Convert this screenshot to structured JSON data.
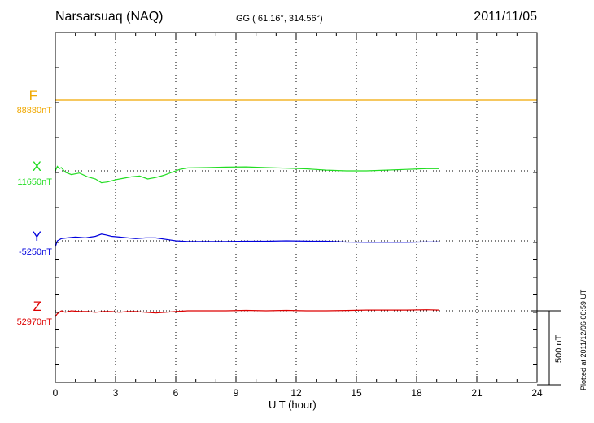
{
  "header": {
    "station": "Narsarsuaq (NAQ)",
    "coords": "GG ( 61.16°, 314.56°)",
    "date": "2011/11/05"
  },
  "footer": {
    "plotted": "Plotted at 2011/12/06 00:59 UT",
    "scale_bar_label": "500 nT"
  },
  "colors": {
    "F": "#f0a800",
    "X": "#22dd22",
    "Y": "#0000dd",
    "Z": "#dd0000"
  },
  "chart_data": {
    "type": "line",
    "title": "Narsarsuaq (NAQ)",
    "xlabel": "U T (hour)",
    "ylabel": "",
    "xlim": [
      0,
      24
    ],
    "x_ticks": [
      "0",
      "3",
      "6",
      "9",
      "12",
      "15",
      "18",
      "21",
      "24"
    ],
    "grid": true,
    "scale_bar_nT": 500,
    "series": [
      {
        "name": "F",
        "baseline_label": "88880nT",
        "x": [
          0,
          24
        ],
        "y_nT": [
          0,
          0
        ]
      },
      {
        "name": "X",
        "baseline_label": "11650nT",
        "x": [
          0,
          0.1,
          0.2,
          0.3,
          0.5,
          0.8,
          1.2,
          1.6,
          2.0,
          2.3,
          2.6,
          3.0,
          3.4,
          3.8,
          4.2,
          4.6,
          5.0,
          5.4,
          5.8,
          6.2,
          6.6,
          7.5,
          8.5,
          9.5,
          10.5,
          11.5,
          12.5,
          13.5,
          14.5,
          15.5,
          16.5,
          17.5,
          18.5,
          19.1
        ],
        "y_nT": [
          0,
          30,
          15,
          22,
          -10,
          -25,
          -15,
          -40,
          -55,
          -80,
          -75,
          -60,
          -50,
          -40,
          -35,
          -55,
          -45,
          -30,
          -10,
          10,
          20,
          22,
          25,
          27,
          22,
          18,
          14,
          5,
          0,
          0,
          5,
          10,
          15,
          15
        ]
      },
      {
        "name": "Y",
        "baseline_label": "-5250nT",
        "x": [
          0,
          0.1,
          0.3,
          0.6,
          1.0,
          1.5,
          2.0,
          2.3,
          2.5,
          2.8,
          3.2,
          3.6,
          4.0,
          4.5,
          5.0,
          5.5,
          6.0,
          6.6,
          7.5,
          8.5,
          9.5,
          10.5,
          11.5,
          12.5,
          13.5,
          14.5,
          15.5,
          16.5,
          17.5,
          18.5,
          19.1
        ],
        "y_nT": [
          -40,
          0,
          15,
          20,
          25,
          20,
          30,
          45,
          40,
          30,
          25,
          20,
          15,
          20,
          20,
          10,
          0,
          -5,
          -5,
          -5,
          -3,
          -3,
          0,
          -2,
          -3,
          -8,
          -10,
          -10,
          -10,
          -7,
          -7
        ]
      },
      {
        "name": "Z",
        "baseline_label": "52970nT",
        "x": [
          0,
          0.1,
          0.3,
          0.5,
          0.8,
          1.2,
          1.6,
          2.0,
          2.4,
          2.8,
          3.2,
          3.6,
          4.0,
          4.5,
          5.0,
          5.5,
          6.0,
          6.6,
          7.5,
          8.5,
          9.5,
          10.5,
          11.5,
          12.5,
          13.5,
          14.5,
          15.5,
          16.5,
          17.5,
          18.5,
          19.1
        ],
        "y_nT": [
          -40,
          -20,
          0,
          -10,
          0,
          -5,
          -5,
          -10,
          -5,
          -5,
          -10,
          -5,
          -5,
          -10,
          -15,
          -10,
          -5,
          0,
          0,
          0,
          3,
          0,
          3,
          0,
          0,
          2,
          5,
          5,
          5,
          7,
          5
        ]
      }
    ]
  }
}
